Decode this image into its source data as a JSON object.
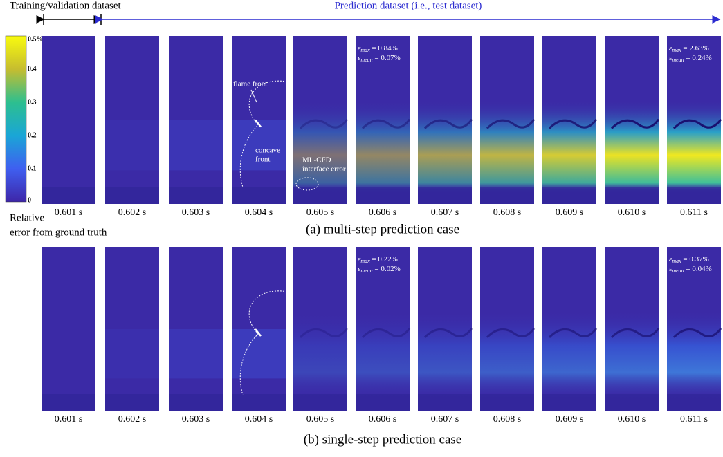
{
  "header": {
    "train_label": "Training/validation dataset",
    "pred_label": "Prediction dataset (i.e., test dataset)"
  },
  "colorbar": {
    "ticks": [
      "0.5%",
      "0.4",
      "0.3",
      "0.2",
      "0.1",
      "0"
    ],
    "label_lines": [
      "Relative",
      "error from ground truth"
    ]
  },
  "annotations": {
    "flame_front": "flame front",
    "concave_front": [
      "concave",
      "front"
    ],
    "interface_error": [
      "ML-CFD",
      "interface error"
    ]
  },
  "rows": [
    {
      "caption": "(a) multi-step prediction case",
      "times": [
        "0.601 s",
        "0.602 s",
        "0.603 s",
        "0.604 s",
        "0.605 s",
        "0.606 s",
        "0.607 s",
        "0.608 s",
        "0.609 s",
        "0.610 s",
        "0.611 s"
      ],
      "stats": [
        {
          "max": {
            "symbol": "ε",
            "sub": "max",
            "value": " = 0.84%"
          },
          "mean": {
            "symbol": "ε",
            "sub": "mean",
            "value": " = 0.07%"
          }
        },
        {
          "max": {
            "symbol": "ε",
            "sub": "max",
            "value": " = 2.63%"
          },
          "mean": {
            "symbol": "ε",
            "sub": "mean",
            "value": " = 0.24%"
          }
        }
      ]
    },
    {
      "caption": "(b) single-step prediction case",
      "times": [
        "0.601 s",
        "0.602 s",
        "0.603 s",
        "0.604 s",
        "0.605 s",
        "0.606 s",
        "0.607 s",
        "0.608 s",
        "0.609 s",
        "0.610 s",
        "0.611 s"
      ],
      "stats": [
        {
          "max": {
            "symbol": "ε",
            "sub": "max",
            "value": " = 0.22%"
          },
          "mean": {
            "symbol": "ε",
            "sub": "mean",
            "value": " = 0.02%"
          }
        },
        {
          "max": {
            "symbol": "ε",
            "sub": "max",
            "value": " = 0.37%"
          },
          "mean": {
            "symbol": "ε",
            "sub": "mean",
            "value": " = 0.04%"
          }
        }
      ]
    }
  ]
}
